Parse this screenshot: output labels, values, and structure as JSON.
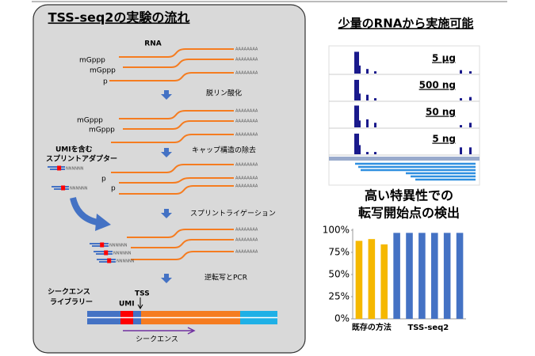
{
  "left_panel": {
    "title": "TSS-seq2の実験の流れ",
    "rna_label": "RNA",
    "poly_a": "AAAAAAAA",
    "umi_n": "NNNNNN",
    "stage1_caps": [
      "mGppp",
      "mGppp",
      "p"
    ],
    "stage2_caps": [
      "mGppp",
      "mGppp"
    ],
    "stage3_caps": [
      "p",
      "p"
    ],
    "steps": [
      "脱リン酸化",
      "キャップ構造の除去",
      "スプリントライゲーション",
      "逆転写とPCR"
    ],
    "adapter_label": [
      "UMIを含む",
      "スプリントアダプター"
    ],
    "library_label": [
      "シークエンス",
      "ライブラリー"
    ],
    "umi": "UMI",
    "tss": "TSS",
    "read_label": "シークエンス"
  },
  "right_top": {
    "title": "少量のRNAから実施可能",
    "tracks": [
      "5 μg",
      "500 ng",
      "50 ng",
      "5 ng"
    ]
  },
  "chart_data": {
    "type": "bar",
    "title": "高い特異性での",
    "subtitle": "転写開始点の検出",
    "series": [
      {
        "name": "既存の方法",
        "color": "#f5b800",
        "values": [
          88,
          90,
          84
        ]
      },
      {
        "name": "TSS-seq2",
        "color": "#4472c4",
        "values": [
          97,
          97,
          97,
          97,
          97,
          97
        ]
      }
    ],
    "ylim": [
      0,
      100
    ],
    "yticks": [
      {
        "value": 0,
        "label": "0%"
      },
      {
        "value": 25,
        "label": "25%"
      },
      {
        "value": 50,
        "label": "50%"
      },
      {
        "value": 75,
        "label": "75%"
      },
      {
        "value": 100,
        "label": "100%"
      }
    ]
  }
}
